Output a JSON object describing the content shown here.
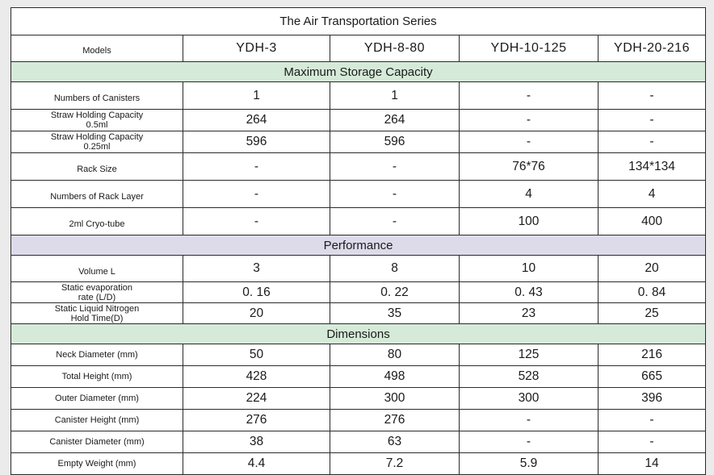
{
  "title": "The Air Transportation Series",
  "models_label": "Models",
  "models": [
    "YDH-3",
    "YDH-8-80",
    "YDH-10-125",
    "YDH-20-216"
  ],
  "sections": [
    {
      "title": "Maximum Storage Capacity",
      "color": "#d5ead8",
      "rows": [
        {
          "label": "Numbers of Canisters",
          "values": [
            "1",
            "1",
            "-",
            "-"
          ]
        },
        {
          "label": "Straw Holding Capacity",
          "label2": "0.5ml",
          "values": [
            "264",
            "264",
            "-",
            "-"
          ]
        },
        {
          "label": "Straw Holding Capacity",
          "label2": "0.25ml",
          "values": [
            "596",
            "596",
            "-",
            "-"
          ]
        },
        {
          "label": "Rack Size",
          "values": [
            "-",
            "-",
            "76*76",
            "134*134"
          ]
        },
        {
          "label": "Numbers of Rack Layer",
          "values": [
            "-",
            "-",
            "4",
            "4"
          ]
        },
        {
          "label": "2ml Cryo-tube",
          "values": [
            "-",
            "-",
            "100",
            "400"
          ]
        }
      ]
    },
    {
      "title": "Performance",
      "color": "#dddae9",
      "rows": [
        {
          "label": "Volume L",
          "values": [
            "3",
            "8",
            "10",
            "20"
          ]
        },
        {
          "label": "Static evaporation",
          "label2": "rate (L/D)",
          "values": [
            "0. 16",
            "0. 22",
            "0. 43",
            "0. 84"
          ]
        },
        {
          "label": "Static Liquid Nitrogen",
          "label2": "Hold Time(D)",
          "values": [
            "20",
            "35",
            "23",
            "25"
          ]
        }
      ]
    },
    {
      "title": "Dimensions",
      "color": "#d5ead8",
      "rows": [
        {
          "label": "Neck Diameter (mm)",
          "values": [
            "50",
            "80",
            "125",
            "216"
          ]
        },
        {
          "label": "Total Height (mm)",
          "values": [
            "428",
            "498",
            "528",
            "665"
          ]
        },
        {
          "label": "Outer Diameter (mm)",
          "values": [
            "224",
            "300",
            "300",
            "396"
          ]
        },
        {
          "label": "Canister Height (mm)",
          "values": [
            "276",
            "276",
            "-",
            "-"
          ]
        },
        {
          "label": "Canister Diameter (mm)",
          "values": [
            "38",
            "63",
            "-",
            "-"
          ]
        },
        {
          "label": "Empty Weight (mm)",
          "values": [
            "4.4",
            "7.2",
            "5.9",
            "14"
          ]
        }
      ]
    }
  ]
}
